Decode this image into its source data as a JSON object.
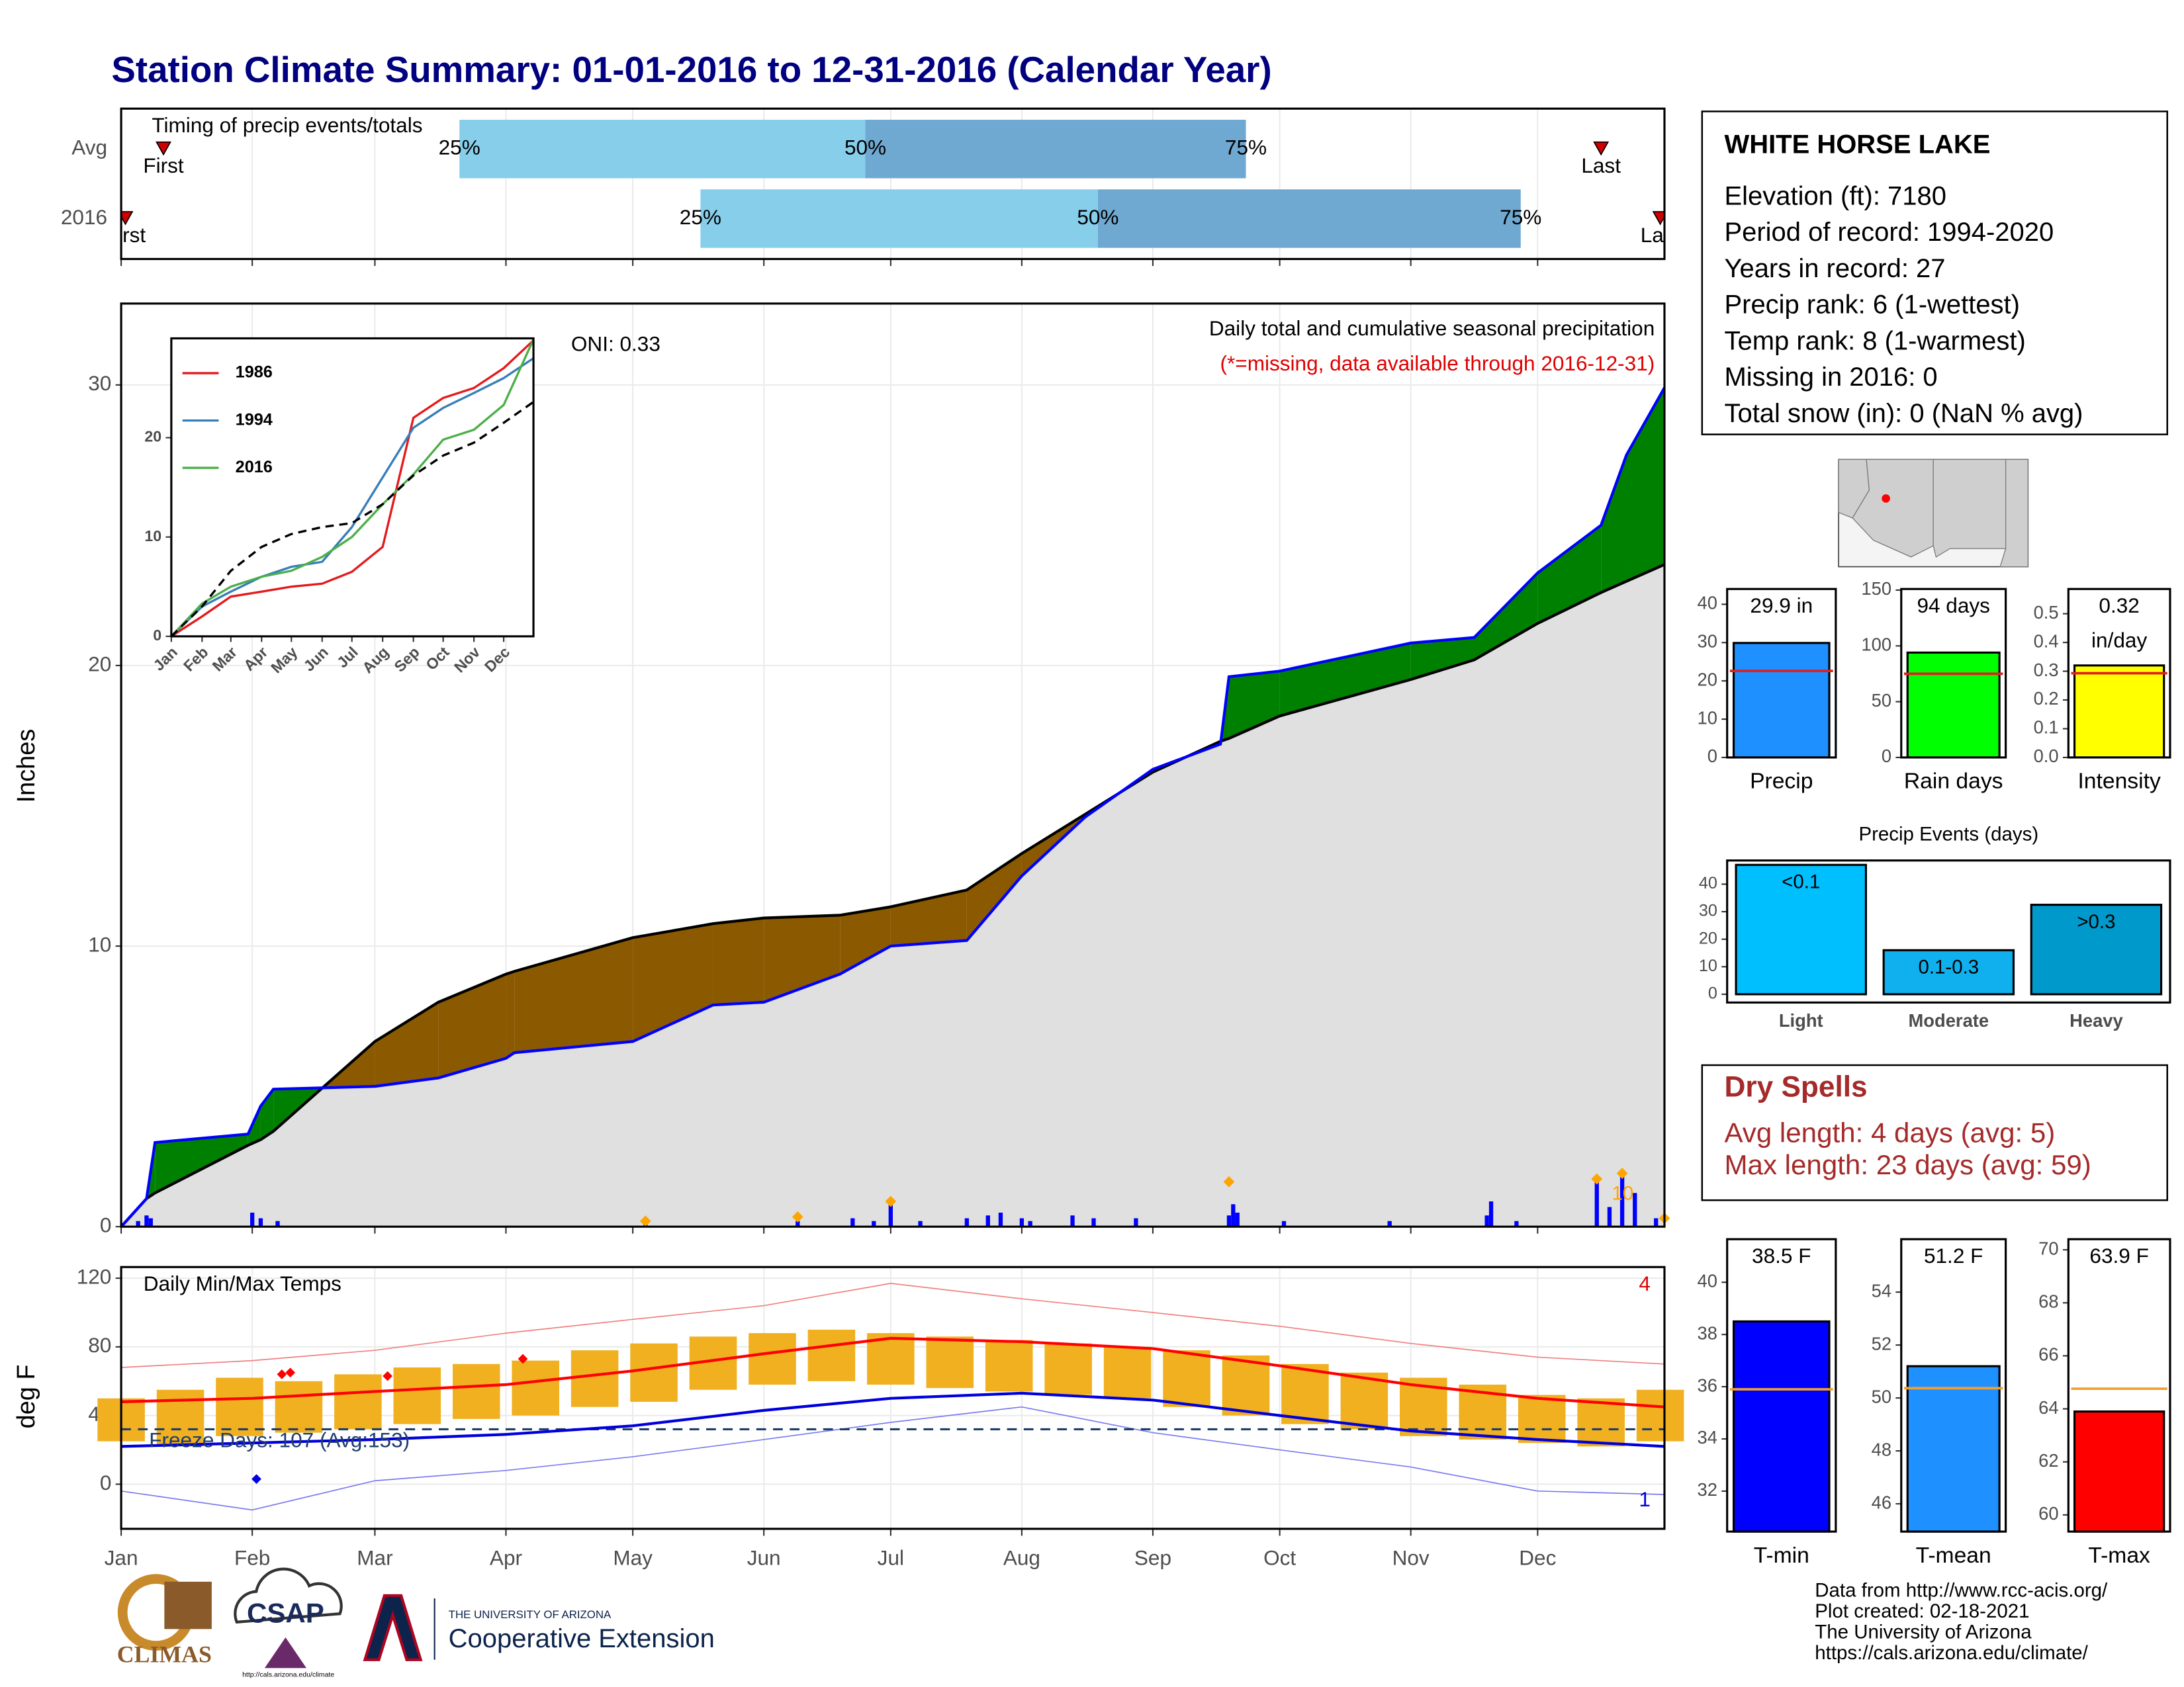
{
  "title": "Station Climate Summary: 01-01-2016 to 12-31-2016 (Calendar Year)",
  "station": {
    "name": "WHITE HORSE LAKE",
    "lines": [
      "Elevation (ft): 7180",
      "Period of record: 1994-2020",
      "Years in record: 27",
      "Precip rank: 6 (1-wettest)",
      "Temp rank: 8 (1-warmest)",
      "Missing in 2016: 0",
      "Total snow (in): 0 (NaN % avg)"
    ]
  },
  "dry_spells": {
    "title": "Dry Spells",
    "lines": [
      "Avg length: 4 days (avg: 5)",
      "Max length: 23 days (avg: 59)"
    ]
  },
  "footer": [
    "Data from http://www.rcc-acis.org/",
    "Plot created: 02-18-2021",
    "The University of Arizona",
    "https://cals.arizona.edu/climate/"
  ],
  "logos": {
    "climas": "CLIMAS",
    "csap": "CSAP",
    "csap_url": "http://cals.arizona.edu/climate",
    "ua": "THE UNIVERSITY OF ARIZONA",
    "coop": "Cooperative Extension"
  },
  "chart_data": [
    {
      "type": "timeline",
      "title": "Timing of precip events/totals",
      "categories": [
        "Avg",
        "2016"
      ],
      "first": [
        10,
        1
      ],
      "q25": [
        80,
        137
      ],
      "q50": [
        176,
        231
      ],
      "q75": [
        266,
        331
      ],
      "last": [
        350,
        364
      ],
      "first_label": "First",
      "last_label": "Last",
      "q_labels": [
        "25%",
        "50%",
        "75%"
      ],
      "xlim": [
        0,
        365
      ],
      "colors": [
        "#87ceeb",
        "#6fa8d0"
      ],
      "marker_color": "#d00000",
      "grid": true
    },
    {
      "type": "cumulative",
      "title": "Daily total and cumulative seasonal precipitation",
      "note": "(*=missing, data available through 2016-12-31)",
      "annotation": "ONI: 0.33",
      "ylabel": "Inches",
      "x": [
        0,
        6,
        8,
        30,
        33,
        36,
        60,
        75,
        91,
        93,
        121,
        140,
        152,
        170,
        182,
        200,
        213,
        228,
        244,
        260,
        262,
        274,
        305,
        320,
        335,
        350,
        356,
        365
      ],
      "series": [
        {
          "color": "#000000",
          "fill": "#e0e0e0",
          "values": [
            0,
            1.0,
            1.2,
            2.9,
            3.1,
            3.4,
            6.6,
            8.0,
            9.0,
            9.1,
            10.3,
            10.8,
            11.0,
            11.1,
            11.4,
            12.0,
            13.3,
            14.7,
            16.2,
            17.3,
            17.4,
            18.2,
            19.5,
            20.2,
            21.5,
            22.6,
            23.0,
            23.6
          ]
        },
        {
          "color": "#0000ff",
          "values": [
            0,
            1.0,
            3.0,
            3.3,
            4.3,
            4.9,
            5.0,
            5.3,
            6.0,
            6.2,
            6.6,
            7.9,
            8.0,
            9.0,
            10.0,
            10.2,
            12.5,
            14.6,
            16.3,
            17.2,
            19.6,
            19.8,
            20.8,
            21.0,
            23.3,
            25.0,
            27.5,
            29.9
          ]
        }
      ],
      "above_color": "#008000",
      "below_color": "#8b5a00",
      "daily": {
        "color": "#0000ff",
        "x": [
          4,
          6,
          7,
          31,
          33,
          37,
          124,
          160,
          173,
          178,
          182,
          189,
          200,
          205,
          208,
          213,
          215,
          225,
          230,
          240,
          262,
          263,
          264,
          275,
          300,
          323,
          324,
          330,
          349,
          352,
          355,
          358,
          363
        ],
        "values": [
          0.2,
          0.4,
          0.3,
          0.5,
          0.3,
          0.2,
          0.1,
          0.2,
          0.3,
          0.2,
          0.9,
          0.2,
          0.3,
          0.4,
          0.5,
          0.3,
          0.2,
          0.4,
          0.3,
          0.3,
          0.4,
          0.8,
          0.5,
          0.2,
          0.2,
          0.4,
          0.9,
          0.2,
          1.6,
          0.7,
          1.9,
          1.2,
          0.3
        ]
      },
      "markers": {
        "color": "#ffa500",
        "x": [
          124,
          160,
          182,
          262,
          349,
          355,
          365
        ],
        "values": [
          0.2,
          0.35,
          0.9,
          1.6,
          1.7,
          1.9,
          0.3
        ]
      },
      "marker_note": "10",
      "xlim": [
        0,
        365
      ],
      "ylim": [
        0,
        32.9
      ],
      "yticks": [
        0,
        10,
        20,
        30
      ],
      "grid": true
    },
    {
      "type": "line",
      "x": [
        0,
        31,
        60,
        91,
        121,
        152,
        182,
        213,
        244,
        274,
        305,
        335,
        365
      ],
      "series": [
        {
          "name": "1986",
          "color": "#e41a1c",
          "values": [
            0,
            2,
            4,
            4.5,
            5,
            5.3,
            6.5,
            9,
            22,
            24,
            25,
            27,
            29.8
          ]
        },
        {
          "name": "1994",
          "color": "#377eb8",
          "values": [
            0,
            3,
            4.5,
            6,
            7,
            7.5,
            11,
            16,
            21,
            23,
            24.5,
            26,
            28
          ]
        },
        {
          "name": "2016",
          "color": "#4daf4a",
          "values": [
            0,
            3.3,
            5.0,
            6.0,
            6.6,
            8.0,
            10.0,
            13.3,
            16.3,
            19.8,
            20.8,
            23.3,
            29.9
          ]
        },
        {
          "color": "#000000",
          "dashed": true,
          "values": [
            0,
            3,
            6.6,
            9,
            10.3,
            11,
            11.4,
            13.3,
            16.2,
            18.2,
            19.5,
            21.5,
            23.6
          ]
        }
      ],
      "xlim": [
        0,
        365
      ],
      "ylim": [
        0,
        30
      ],
      "yticks": [
        0,
        10,
        20
      ],
      "xticks": [
        {
          "value": 0,
          "label": "Jan"
        },
        {
          "value": 31,
          "label": "Feb"
        },
        {
          "value": 60,
          "label": "Mar"
        },
        {
          "value": 91,
          "label": "Apr"
        },
        {
          "value": 121,
          "label": "May"
        },
        {
          "value": 152,
          "label": "Jun"
        },
        {
          "value": 182,
          "label": "Jul"
        },
        {
          "value": 213,
          "label": "Aug"
        },
        {
          "value": 244,
          "label": "Sep"
        },
        {
          "value": 274,
          "label": "Oct"
        },
        {
          "value": 305,
          "label": "Nov"
        },
        {
          "value": 335,
          "label": "Dec"
        }
      ]
    },
    {
      "type": "temperature",
      "title": "Daily Min/Max Temps",
      "ylabel": "deg F",
      "annotation": "Freeze Days: 107 (Avg:153)",
      "x": [
        0,
        31,
        60,
        91,
        121,
        152,
        182,
        213,
        244,
        274,
        305,
        335,
        365
      ],
      "normal_max": {
        "color": "#ff0000",
        "values": [
          48,
          50,
          54,
          58,
          66,
          76,
          85,
          83,
          79,
          69,
          58,
          50,
          45
        ]
      },
      "normal_min": {
        "color": "#0000dd",
        "values": [
          22,
          24,
          26,
          29,
          34,
          43,
          50,
          53,
          49,
          40,
          31,
          26,
          22
        ]
      },
      "record_max": {
        "color": "#f08080",
        "values": [
          68,
          72,
          78,
          88,
          96,
          104,
          117,
          108,
          100,
          92,
          82,
          74,
          70
        ]
      },
      "record_min": {
        "color": "#7b7bf0",
        "values": [
          -4,
          -15,
          2,
          8,
          16,
          26,
          36,
          45,
          30,
          20,
          10,
          -4,
          -6
        ]
      },
      "daily": {
        "color": "#f0b020",
        "x": [
          0,
          14,
          28,
          42,
          56,
          70,
          84,
          98,
          112,
          126,
          140,
          154,
          168,
          182,
          196,
          210,
          224,
          238,
          252,
          266,
          280,
          294,
          308,
          322,
          336,
          350,
          364
        ],
        "highs": [
          50,
          55,
          62,
          60,
          64,
          68,
          70,
          72,
          78,
          82,
          86,
          88,
          90,
          88,
          86,
          84,
          82,
          80,
          78,
          75,
          70,
          65,
          62,
          58,
          52,
          50,
          55
        ],
        "lows": [
          25,
          22,
          28,
          30,
          32,
          35,
          38,
          40,
          45,
          48,
          55,
          58,
          60,
          58,
          56,
          54,
          52,
          50,
          45,
          40,
          35,
          32,
          28,
          26,
          24,
          22,
          25
        ]
      },
      "record_high_marks": {
        "color": "#ff0000",
        "x": [
          38,
          40,
          63,
          95
        ],
        "values": [
          64,
          65,
          63,
          73
        ]
      },
      "record_low_marks": {
        "color": "#0000dd",
        "x": [
          32
        ],
        "values": [
          3
        ]
      },
      "record_highs": 4,
      "record_lows": 1,
      "freeze_line": 32,
      "freeze_color": "#1f3d6b",
      "xlim": [
        0,
        365
      ],
      "ylim": [
        -26,
        126.5
      ],
      "yticks": [
        0,
        40,
        80,
        120
      ],
      "grid": true,
      "xticks": [
        {
          "value": 0,
          "label": "Jan"
        },
        {
          "value": 31,
          "label": "Feb"
        },
        {
          "value": 60,
          "label": "Mar"
        },
        {
          "value": 91,
          "label": "Apr"
        },
        {
          "value": 121,
          "label": "May"
        },
        {
          "value": 152,
          "label": "Jun"
        },
        {
          "value": 182,
          "label": "Jul"
        },
        {
          "value": 213,
          "label": "Aug"
        },
        {
          "value": 244,
          "label": "Sep"
        },
        {
          "value": 274,
          "label": "Oct"
        },
        {
          "value": 305,
          "label": "Nov"
        },
        {
          "value": 335,
          "label": "Dec"
        }
      ]
    },
    {
      "type": "bar",
      "categories": [
        "Precip"
      ],
      "values": [
        29.9
      ],
      "value_labels": [
        "29.9 in"
      ],
      "average": 22.6,
      "average_color": "#e02020",
      "color": "#1e90ff",
      "ylim": [
        0,
        44
      ],
      "yticks": [
        0,
        10,
        20,
        30,
        40
      ]
    },
    {
      "type": "bar",
      "categories": [
        "Rain days"
      ],
      "values": [
        94
      ],
      "value_labels": [
        "94 days"
      ],
      "average": 75,
      "average_color": "#e02020",
      "color": "#00ff00",
      "ylim": [
        0,
        151
      ],
      "yticks": [
        0,
        50,
        100,
        150
      ]
    },
    {
      "type": "bar",
      "categories": [
        "Intensity"
      ],
      "values": [
        0.32
      ],
      "value_labels": [
        "0.32"
      ],
      "unit": "in/day",
      "average": 0.293,
      "average_color": "#e02020",
      "color": "#ffff00",
      "ylim": [
        0,
        0.586
      ],
      "yticks": [
        {
          "value": 0,
          "label": "0.0"
        },
        0.1,
        0.2,
        0.3,
        0.4,
        0.5
      ]
    },
    {
      "type": "bar",
      "title": "Precip Events (days)",
      "categories": [
        "Light",
        "Moderate",
        "Heavy"
      ],
      "values": [
        47,
        16,
        32.5
      ],
      "bar_labels": [
        "<0.1",
        "0.1-0.3",
        ">0.3"
      ],
      "colors": [
        "#00bfff",
        "#10b0ee",
        "#0099cc"
      ],
      "ylim": [
        -3,
        48.6
      ],
      "yticks": [
        0,
        10,
        20,
        30,
        40
      ]
    },
    {
      "type": "bar",
      "categories": [
        "T-min"
      ],
      "values": [
        38.5
      ],
      "value_labels": [
        "38.5 F"
      ],
      "average": 35.9,
      "average_color": "#f0a030",
      "color": "#0000ff",
      "ylim": [
        30.45,
        41.65
      ],
      "yticks": [
        32,
        34,
        36,
        38,
        40
      ]
    },
    {
      "type": "bar",
      "categories": [
        "T-mean"
      ],
      "values": [
        51.2
      ],
      "value_labels": [
        "51.2 F"
      ],
      "average": 50.37,
      "average_color": "#f0a030",
      "color": "#1e90ff",
      "ylim": [
        44.95,
        56.0
      ],
      "yticks": [
        46,
        48,
        50,
        52,
        54
      ]
    },
    {
      "type": "bar",
      "categories": [
        "T-max"
      ],
      "values": [
        63.9
      ],
      "value_labels": [
        "63.9 F"
      ],
      "average": 64.76,
      "average_color": "#f0a030",
      "color": "#ff0000",
      "ylim": [
        59.37,
        70.4
      ],
      "yticks": [
        60,
        62,
        64,
        66,
        68,
        70
      ]
    }
  ]
}
